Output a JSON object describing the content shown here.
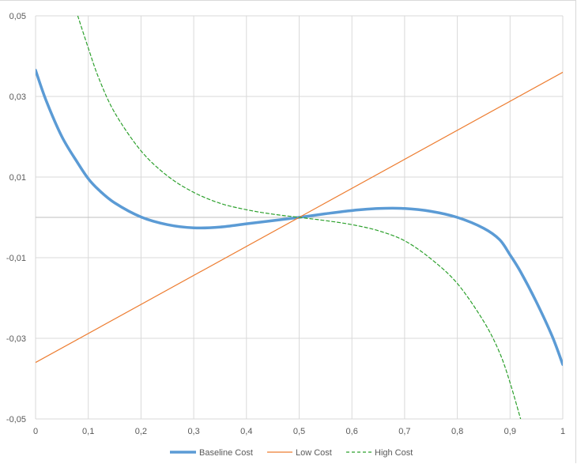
{
  "chart_data": {
    "type": "line",
    "title": "",
    "xlabel": "",
    "ylabel": "",
    "xlim": [
      0,
      1
    ],
    "ylim": [
      -0.05,
      0.05
    ],
    "x_ticks": [
      0,
      0.1,
      0.2,
      0.3,
      0.4,
      0.5,
      0.6,
      0.7,
      0.8,
      0.9,
      1
    ],
    "x_tick_labels": [
      "0",
      "0,1",
      "0,2",
      "0,3",
      "0,4",
      "0,5",
      "0,6",
      "0,7",
      "0,8",
      "0,9",
      "1"
    ],
    "y_ticks": [
      0.05,
      0.03,
      0.01,
      -0.01,
      -0.03,
      -0.05
    ],
    "y_tick_labels": [
      "0,05",
      "0,03",
      "0,01",
      "-0,01",
      "-0,03",
      "-0,05"
    ],
    "grid": true,
    "legend_position": "bottom",
    "series": [
      {
        "name": "Baseline Cost",
        "color": "#5b9bd5",
        "style": "solid-thick",
        "x": [
          0,
          0.02,
          0.05,
          0.08,
          0.1,
          0.12,
          0.15,
          0.2,
          0.25,
          0.3,
          0.35,
          0.4,
          0.45,
          0.5,
          0.55,
          0.6,
          0.65,
          0.7,
          0.75,
          0.8,
          0.85,
          0.88,
          0.9,
          0.92,
          0.95,
          0.98,
          1
        ],
        "y": [
          0.0365,
          0.029,
          0.02,
          0.0135,
          0.0096,
          0.0068,
          0.0036,
          0.0001,
          -0.0018,
          -0.0026,
          -0.0024,
          -0.0016,
          -0.0008,
          0,
          0.0009,
          0.0017,
          0.0022,
          0.0022,
          0.0015,
          0,
          -0.0027,
          -0.0055,
          -0.0093,
          -0.0135,
          -0.021,
          -0.0295,
          -0.0365
        ]
      },
      {
        "name": "Low Cost",
        "color": "#ed7d31",
        "style": "solid-thin",
        "x": [
          0,
          1
        ],
        "y": [
          -0.036,
          0.036
        ]
      },
      {
        "name": "High Cost",
        "color": "#2ca02c",
        "style": "dashed",
        "x": [
          0.08,
          0.1,
          0.12,
          0.15,
          0.2,
          0.25,
          0.3,
          0.35,
          0.4,
          0.45,
          0.5,
          0.55,
          0.6,
          0.65,
          0.7,
          0.75,
          0.8,
          0.85,
          0.88,
          0.9,
          0.92
        ],
        "y": [
          0.05,
          0.042,
          0.0345,
          0.026,
          0.0165,
          0.0103,
          0.0062,
          0.0035,
          0.0019,
          0.0008,
          0,
          -0.0008,
          -0.0018,
          -0.0033,
          -0.0058,
          -0.0103,
          -0.0164,
          -0.0258,
          -0.0335,
          -0.041,
          -0.05
        ]
      }
    ]
  }
}
